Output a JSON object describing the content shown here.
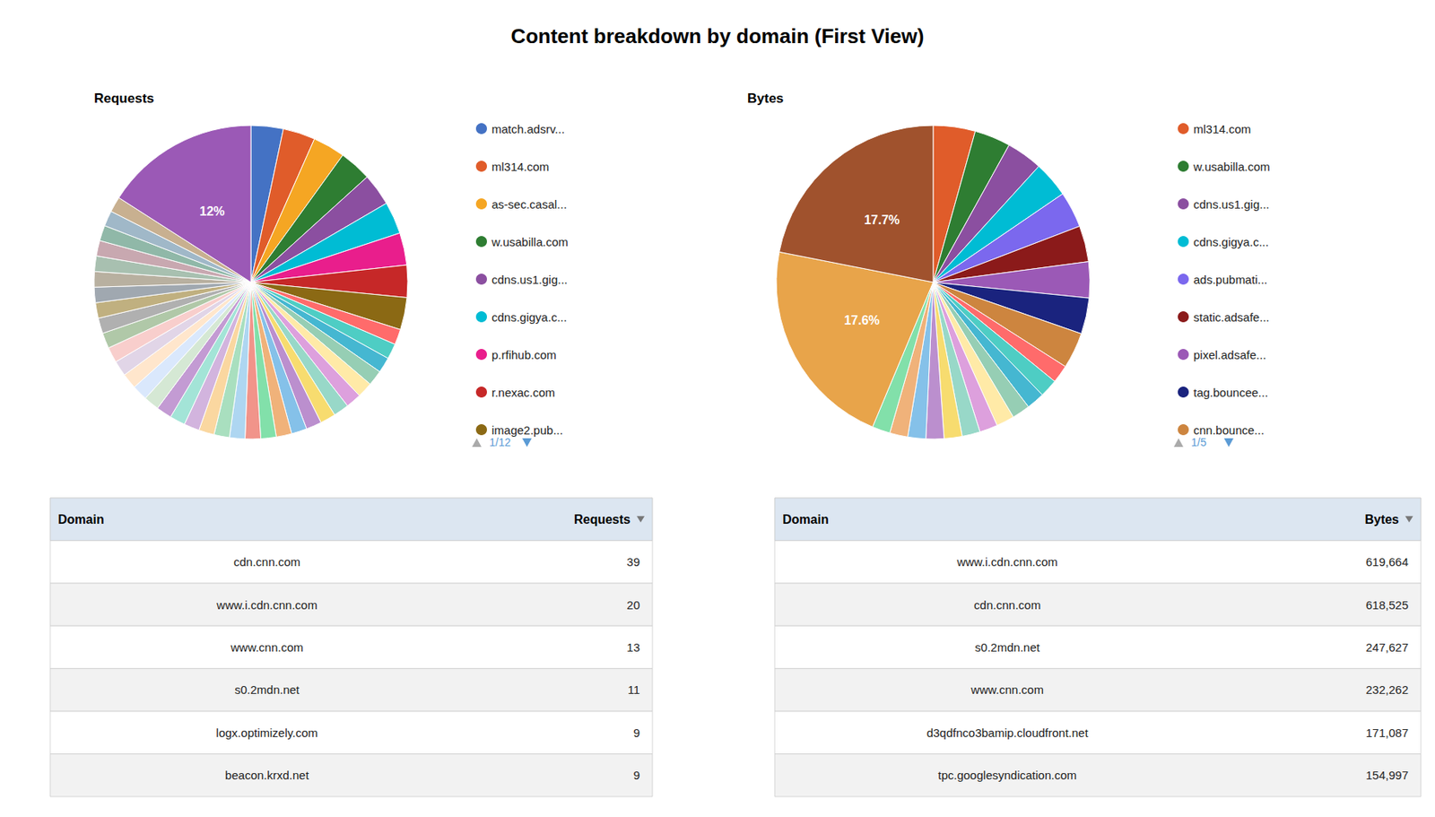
{
  "title": "Content breakdown by domain (First View)",
  "chart_data": [
    {
      "type": "pie",
      "title": "Requests",
      "categories": [
        "match.adsrv...",
        "ml314.com",
        "as-sec.casal...",
        "w.usabilla.com",
        "cdns.us1.gig...",
        "cdns.gigya.c...",
        "p.rfihub.com",
        "r.nexac.com",
        "image2.pub...",
        null,
        null,
        null,
        null,
        null,
        null,
        null,
        null,
        null,
        null,
        null,
        null,
        null,
        null,
        null,
        null,
        null,
        null,
        null,
        null,
        null,
        null,
        null,
        null,
        null,
        null,
        null,
        null,
        null,
        null,
        null,
        null,
        null,
        null,
        null
      ],
      "values": [
        2.5,
        2.5,
        2.5,
        2.5,
        2.5,
        2.5,
        2.5,
        2.5,
        2.5,
        1.2,
        1.2,
        1.2,
        1.2,
        1.2,
        1.2,
        1.2,
        1.2,
        1.2,
        1.2,
        1.2,
        1.2,
        1.2,
        1.2,
        1.2,
        1.2,
        1.2,
        1.2,
        1.2,
        1.2,
        1.2,
        1.2,
        1.2,
        1.2,
        1.2,
        1.2,
        1.2,
        1.2,
        1.2,
        1.2,
        1.2,
        1.2,
        1.2,
        1.2,
        12
      ],
      "value_labels": [
        null,
        null,
        null,
        null,
        null,
        null,
        null,
        null,
        null,
        null,
        null,
        null,
        null,
        null,
        null,
        null,
        null,
        null,
        null,
        null,
        null,
        null,
        null,
        null,
        null,
        null,
        null,
        null,
        null,
        null,
        null,
        null,
        null,
        null,
        null,
        null,
        null,
        null,
        null,
        null,
        null,
        null,
        null,
        "12%"
      ],
      "colors": [
        "#4472C4",
        "#E05C2A",
        "#F5A623",
        "#2E7D32",
        "#8B4FA0",
        "#00BCD4",
        "#E91E8C",
        "#C62828",
        "#8B6914",
        "#FF6B6B",
        "#4ECDC4",
        "#45B7D1",
        "#96CEB4",
        "#FFEAA7",
        "#DDA0DD",
        "#98D8C8",
        "#F7DC6F",
        "#BB8FCE",
        "#85C1E9",
        "#F0B27A",
        "#82E0AA",
        "#F1948A",
        "#AED6F1",
        "#A9DFBF",
        "#FAD7A0",
        "#D2B4DE",
        "#A3E4D7",
        "#C39BD3",
        "#D5E8D4",
        "#DAE8FC",
        "#FFE6CC",
        "#E1D5E7",
        "#F8CECC",
        "#B0C8A8",
        "#b0b0b0",
        "#c0b080",
        "#a0a8b0",
        "#b8b0a0",
        "#a8c0b0",
        "#c8a8b0",
        "#90b8a8",
        "#a0b8c8",
        "#c8b090",
        "#9B59B6"
      ],
      "legend": "right",
      "pagination": "1/12",
      "table": {
        "headers": [
          "Domain",
          "Requests"
        ],
        "rows": [
          [
            "cdn.cnn.com",
            "39"
          ],
          [
            "www.i.cdn.cnn.com",
            "20"
          ],
          [
            "www.cnn.com",
            "13"
          ],
          [
            "s0.2mdn.net",
            "11"
          ],
          [
            "logx.optimizely.com",
            "9"
          ],
          [
            "beacon.krxd.net",
            "9"
          ]
        ]
      }
    },
    {
      "type": "pie",
      "title": "Bytes",
      "categories": [
        "ml314.com",
        "w.usabilla.com",
        "cdns.us1.gig...",
        "cdns.gigya.c...",
        "ads.pubmati...",
        "static.adsafe...",
        "pixel.adsafe...",
        "tag.bouncee...",
        "cnn.bounce...",
        null,
        null,
        null,
        null,
        null,
        null,
        null,
        null,
        null,
        null,
        null,
        null,
        null,
        null
      ],
      "values": [
        3.5,
        3.0,
        3.0,
        3.0,
        3.0,
        3.0,
        3.0,
        3.0,
        3.0,
        1.5,
        1.5,
        1.5,
        1.5,
        1.5,
        1.5,
        1.5,
        1.5,
        1.5,
        1.5,
        1.5,
        1.5,
        17.6,
        17.7
      ],
      "value_labels": [
        null,
        null,
        null,
        null,
        null,
        null,
        null,
        null,
        null,
        null,
        null,
        null,
        null,
        null,
        null,
        null,
        null,
        null,
        null,
        null,
        null,
        "17.6%",
        "17.7%"
      ],
      "colors": [
        "#E05C2A",
        "#2E7D32",
        "#8B4FA0",
        "#00BCD4",
        "#7B68EE",
        "#8B1A1A",
        "#9B59B6",
        "#1A237E",
        "#CD853F",
        "#FF6B6B",
        "#4ECDC4",
        "#45B7D1",
        "#96CEB4",
        "#FFEAA7",
        "#DDA0DD",
        "#98D8C8",
        "#F7DC6F",
        "#BB8FCE",
        "#85C1E9",
        "#F0B27A",
        "#82E0AA",
        "#E8A44A",
        "#A0522D"
      ],
      "legend": "right",
      "pagination": "1/5",
      "table": {
        "headers": [
          "Domain",
          "Bytes"
        ],
        "rows": [
          [
            "www.i.cdn.cnn.com",
            "619,664"
          ],
          [
            "cdn.cnn.com",
            "618,525"
          ],
          [
            "s0.2mdn.net",
            "247,627"
          ],
          [
            "www.cnn.com",
            "232,262"
          ],
          [
            "d3qdfnco3bamip.cloudfront.net",
            "171,087"
          ],
          [
            "tpc.googlesyndication.com",
            "154,997"
          ]
        ]
      }
    }
  ]
}
